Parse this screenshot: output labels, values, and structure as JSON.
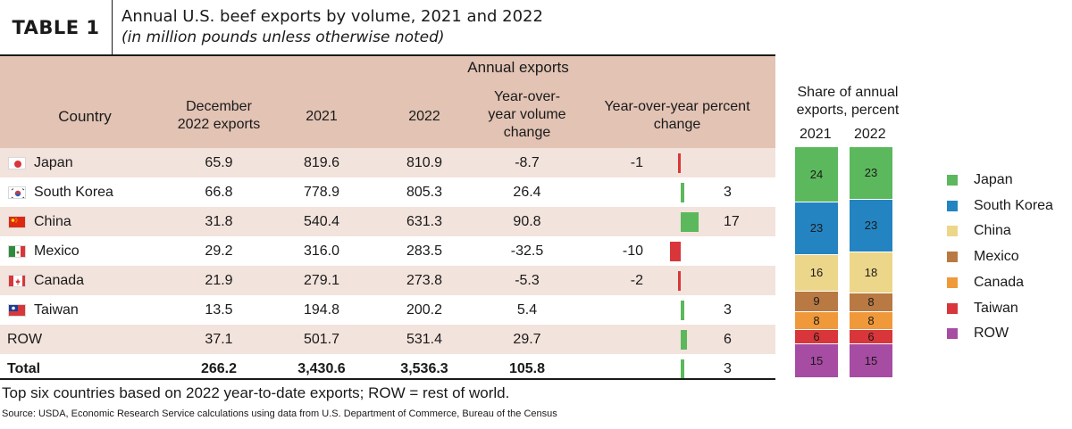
{
  "title": {
    "label": "TABLE 1",
    "main": "Annual U.S. beef exports by volume, 2021 and 2022",
    "sub": "(in million pounds unless otherwise noted)"
  },
  "header": {
    "group": "Annual exports",
    "country": "Country",
    "dec_line1": "December",
    "dec_line2": "2022 exports",
    "y2021": "2021",
    "y2022": "2022",
    "yoy_line1": "Year-over-",
    "yoy_line2": "year volume",
    "yoy_line3": "change",
    "pct_line1": "Year-over-year percent",
    "pct_line2": "change"
  },
  "rows": [
    {
      "country": "Japan",
      "dec": "65.9",
      "y2021": "819.6",
      "y2022": "810.9",
      "yoy": "-8.7",
      "pct_label": "-1",
      "pct": -1
    },
    {
      "country": "South Korea",
      "dec": "66.8",
      "y2021": "778.9",
      "y2022": "805.3",
      "yoy": "26.4",
      "pct_label": "3",
      "pct": 3
    },
    {
      "country": "China",
      "dec": "31.8",
      "y2021": "540.4",
      "y2022": "631.3",
      "yoy": "90.8",
      "pct_label": "17",
      "pct": 17
    },
    {
      "country": "Mexico",
      "dec": "29.2",
      "y2021": "316.0",
      "y2022": "283.5",
      "yoy": "-32.5",
      "pct_label": "-10",
      "pct": -10
    },
    {
      "country": "Canada",
      "dec": "21.9",
      "y2021": "279.1",
      "y2022": "273.8",
      "yoy": "-5.3",
      "pct_label": "-2",
      "pct": -2
    },
    {
      "country": "Taiwan",
      "dec": "13.5",
      "y2021": "194.8",
      "y2022": "200.2",
      "yoy": "5.4",
      "pct_label": "3",
      "pct": 3
    },
    {
      "country": "ROW",
      "dec": "37.1",
      "y2021": "501.7",
      "y2022": "531.4",
      "yoy": "29.7",
      "pct_label": "6",
      "pct": 6
    },
    {
      "country": "Total",
      "dec": "266.2",
      "y2021": "3,430.6",
      "y2022": "3,536.3",
      "yoy": "105.8",
      "pct_label": "3",
      "pct": 3
    }
  ],
  "share": {
    "title_line1": "Share of annual",
    "title_line2": "exports, percent",
    "year1": "2021",
    "year2": "2022"
  },
  "footnote": "Top six countries based on 2022 year-to-date exports; ROW = rest of world.",
  "source": "Source: USDA, Economic Research Service calculations using data from U.S. Department of Commerce, Bureau of the Census",
  "colors": {
    "positive_bar": "#5cb85c",
    "negative_bar": "#d8363a",
    "header_bg": "#e2c3b4",
    "row_alt_bg": "#f2e3dc"
  },
  "chart_data": [
    {
      "type": "bar",
      "orientation": "horizontal",
      "categories": [
        "Japan",
        "South Korea",
        "China",
        "Mexico",
        "Canada",
        "Taiwan",
        "ROW",
        "Total"
      ],
      "values": [
        -1,
        3,
        17,
        -10,
        -2,
        3,
        6,
        3
      ],
      "title": "Year-over-year percent change"
    },
    {
      "type": "bar",
      "stacked": true,
      "title": "Share of annual exports, percent",
      "categories": [
        "2021",
        "2022"
      ],
      "series": [
        {
          "name": "Japan",
          "values": [
            24,
            23
          ],
          "color": "#5cb85c"
        },
        {
          "name": "South Korea",
          "values": [
            23,
            23
          ],
          "color": "#2484c1"
        },
        {
          "name": "China",
          "values": [
            16,
            18
          ],
          "color": "#ecd68a"
        },
        {
          "name": "Mexico",
          "values": [
            9,
            8
          ],
          "color": "#b87942"
        },
        {
          "name": "Canada",
          "values": [
            8,
            8
          ],
          "color": "#f0993a"
        },
        {
          "name": "Taiwan",
          "values": [
            6,
            6
          ],
          "color": "#d8363a"
        },
        {
          "name": "ROW",
          "values": [
            15,
            15
          ],
          "color": "#a64ca2"
        }
      ],
      "legend": "right"
    }
  ]
}
